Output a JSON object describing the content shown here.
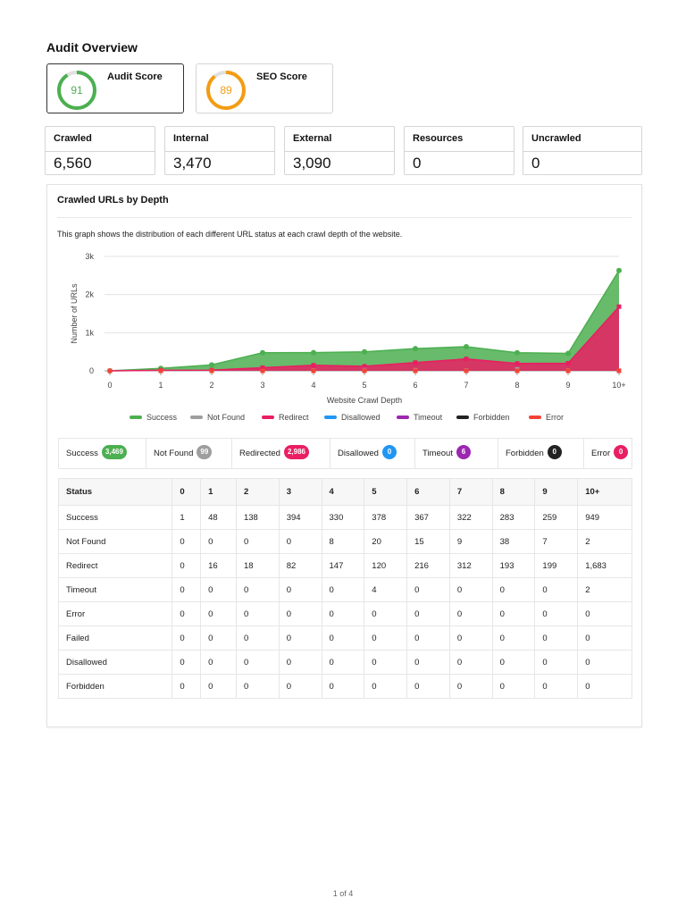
{
  "page": {
    "title": "Audit Overview",
    "footer": "1 of 4"
  },
  "scores": [
    {
      "label": "Audit Score",
      "value": "91",
      "percent": 91,
      "color": "#4caf50"
    },
    {
      "label": "SEO Score",
      "value": "89",
      "percent": 89,
      "color": "#f39c12"
    }
  ],
  "stats": [
    {
      "label": "Crawled",
      "value": "6,560"
    },
    {
      "label": "Internal",
      "value": "3,470"
    },
    {
      "label": "External",
      "value": "3,090"
    },
    {
      "label": "Resources",
      "value": "0"
    },
    {
      "label": "Uncrawled",
      "value": "0"
    }
  ],
  "panel": {
    "title": "Crawled URLs by Depth",
    "description": "This graph shows the distribution of each different URL status at each crawl depth of the website."
  },
  "chart_data": {
    "type": "area",
    "xlabel": "Website Crawl Depth",
    "ylabel": "Number of URLs",
    "categories": [
      "0",
      "1",
      "2",
      "3",
      "4",
      "5",
      "6",
      "7",
      "8",
      "9",
      "10+"
    ],
    "ylim": [
      0,
      3000
    ],
    "yticks": [
      "0",
      "1k",
      "2k",
      "3k"
    ],
    "grid": true,
    "legend_position": "bottom",
    "series": [
      {
        "name": "Success",
        "color": "#4caf50",
        "values": [
          1,
          64,
          156,
          476,
          477,
          498,
          583,
          634,
          476,
          458,
          2632
        ]
      },
      {
        "name": "Not Found",
        "color": "#9e9e9e",
        "values": [
          0,
          0,
          0,
          0,
          8,
          20,
          15,
          9,
          38,
          7,
          2
        ]
      },
      {
        "name": "Redirect",
        "color": "#e91e63",
        "values": [
          0,
          16,
          18,
          82,
          147,
          120,
          216,
          312,
          193,
          199,
          1683
        ]
      },
      {
        "name": "Disallowed",
        "color": "#2196f3",
        "values": [
          0,
          0,
          0,
          0,
          0,
          0,
          0,
          0,
          0,
          0,
          0
        ]
      },
      {
        "name": "Timeout",
        "color": "#9c27b0",
        "values": [
          0,
          0,
          0,
          0,
          0,
          4,
          0,
          0,
          0,
          0,
          2
        ]
      },
      {
        "name": "Forbidden",
        "color": "#222222",
        "values": [
          0,
          0,
          0,
          0,
          0,
          0,
          0,
          0,
          0,
          0,
          0
        ]
      },
      {
        "name": "Error",
        "color": "#f44336",
        "values": [
          0,
          0,
          0,
          0,
          0,
          0,
          0,
          0,
          0,
          0,
          0
        ]
      }
    ]
  },
  "badges": [
    {
      "label": "Success",
      "count": "3,469",
      "color": "#4caf50"
    },
    {
      "label": "Not Found",
      "count": "99",
      "color": "#9e9e9e"
    },
    {
      "label": "Redirected",
      "count": "2,986",
      "color": "#e91e63"
    },
    {
      "label": "Disallowed",
      "count": "0",
      "color": "#2196f3"
    },
    {
      "label": "Timeout",
      "count": "6",
      "color": "#9c27b0"
    },
    {
      "label": "Forbidden",
      "count": "0",
      "color": "#222222"
    },
    {
      "label": "Error",
      "count": "0",
      "color": "#e91e63"
    }
  ],
  "table": {
    "headers": [
      "Status",
      "0",
      "1",
      "2",
      "3",
      "4",
      "5",
      "6",
      "7",
      "8",
      "9",
      "10+"
    ],
    "rows": [
      [
        "Success",
        "1",
        "48",
        "138",
        "394",
        "330",
        "378",
        "367",
        "322",
        "283",
        "259",
        "949"
      ],
      [
        "Not Found",
        "0",
        "0",
        "0",
        "0",
        "8",
        "20",
        "15",
        "9",
        "38",
        "7",
        "2"
      ],
      [
        "Redirect",
        "0",
        "16",
        "18",
        "82",
        "147",
        "120",
        "216",
        "312",
        "193",
        "199",
        "1,683"
      ],
      [
        "Timeout",
        "0",
        "0",
        "0",
        "0",
        "0",
        "4",
        "0",
        "0",
        "0",
        "0",
        "2"
      ],
      [
        "Error",
        "0",
        "0",
        "0",
        "0",
        "0",
        "0",
        "0",
        "0",
        "0",
        "0",
        "0"
      ],
      [
        "Failed",
        "0",
        "0",
        "0",
        "0",
        "0",
        "0",
        "0",
        "0",
        "0",
        "0",
        "0"
      ],
      [
        "Disallowed",
        "0",
        "0",
        "0",
        "0",
        "0",
        "0",
        "0",
        "0",
        "0",
        "0",
        "0"
      ],
      [
        "Forbidden",
        "0",
        "0",
        "0",
        "0",
        "0",
        "0",
        "0",
        "0",
        "0",
        "0",
        "0"
      ]
    ]
  }
}
